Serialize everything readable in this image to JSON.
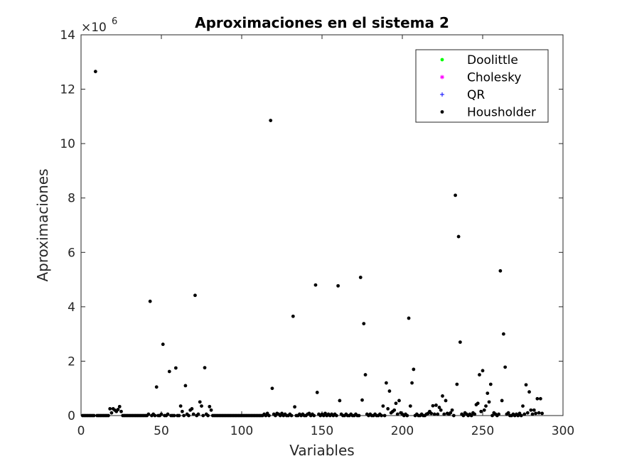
{
  "chart_data": {
    "type": "scatter",
    "title": "Aproximaciones en el sistema 2",
    "xlabel": "Variables",
    "ylabel": "Aproximaciones",
    "y_exponent_label": "×10",
    "y_exponent_power": "6",
    "xlim": [
      0,
      300
    ],
    "ylim": [
      0,
      14000000
    ],
    "xticks": [
      0,
      50,
      100,
      150,
      200,
      250,
      300
    ],
    "yticks": [
      0,
      2000000,
      4000000,
      6000000,
      8000000,
      10000000,
      12000000,
      14000000
    ],
    "ytick_labels": [
      "0",
      "2",
      "4",
      "6",
      "8",
      "10",
      "12",
      "14"
    ],
    "grid": false,
    "legend_position": "top-right",
    "legend": [
      {
        "name": "Doolittle",
        "color": "#00ff00",
        "marker": "dot"
      },
      {
        "name": "Cholesky",
        "color": "#ff00ff",
        "marker": "star"
      },
      {
        "name": "QR",
        "color": "#0000ff",
        "marker": "plus"
      },
      {
        "name": "Housholder",
        "color": "#000000",
        "marker": "dot"
      }
    ],
    "series": [
      {
        "name": "Housholder",
        "color": "#000000",
        "points": [
          [
            1,
            0
          ],
          [
            2,
            0
          ],
          [
            3,
            0
          ],
          [
            4,
            0
          ],
          [
            5,
            0
          ],
          [
            6,
            0
          ],
          [
            7,
            0
          ],
          [
            8,
            0
          ],
          [
            9,
            12650000
          ],
          [
            10,
            0
          ],
          [
            11,
            0
          ],
          [
            12,
            0
          ],
          [
            13,
            0
          ],
          [
            14,
            0
          ],
          [
            15,
            0
          ],
          [
            16,
            0
          ],
          [
            17,
            0
          ],
          [
            18,
            250000
          ],
          [
            19,
            100000
          ],
          [
            20,
            250000
          ],
          [
            21,
            200000
          ],
          [
            22,
            150000
          ],
          [
            23,
            220000
          ],
          [
            24,
            330000
          ],
          [
            25,
            150000
          ],
          [
            26,
            0
          ],
          [
            27,
            0
          ],
          [
            28,
            0
          ],
          [
            29,
            0
          ],
          [
            30,
            0
          ],
          [
            31,
            0
          ],
          [
            32,
            0
          ],
          [
            33,
            0
          ],
          [
            34,
            0
          ],
          [
            35,
            0
          ],
          [
            36,
            0
          ],
          [
            37,
            0
          ],
          [
            38,
            0
          ],
          [
            39,
            0
          ],
          [
            40,
            0
          ],
          [
            41,
            0
          ],
          [
            42,
            50000
          ],
          [
            43,
            4200000
          ],
          [
            44,
            0
          ],
          [
            45,
            50000
          ],
          [
            46,
            0
          ],
          [
            47,
            1050000
          ],
          [
            48,
            0
          ],
          [
            49,
            0
          ],
          [
            50,
            50000
          ],
          [
            51,
            2620000
          ],
          [
            52,
            0
          ],
          [
            53,
            0
          ],
          [
            54,
            50000
          ],
          [
            55,
            1620000
          ],
          [
            56,
            0
          ],
          [
            57,
            0
          ],
          [
            58,
            0
          ],
          [
            59,
            1750000
          ],
          [
            60,
            0
          ],
          [
            61,
            0
          ],
          [
            62,
            350000
          ],
          [
            63,
            150000
          ],
          [
            64,
            0
          ],
          [
            65,
            1100000
          ],
          [
            66,
            50000
          ],
          [
            67,
            0
          ],
          [
            68,
            200000
          ],
          [
            69,
            250000
          ],
          [
            70,
            50000
          ],
          [
            71,
            4420000
          ],
          [
            72,
            0
          ],
          [
            73,
            50000
          ],
          [
            74,
            500000
          ],
          [
            75,
            350000
          ],
          [
            76,
            0
          ],
          [
            77,
            1760000
          ],
          [
            78,
            50000
          ],
          [
            79,
            0
          ],
          [
            80,
            330000
          ],
          [
            81,
            200000
          ],
          [
            82,
            0
          ],
          [
            83,
            0
          ],
          [
            84,
            0
          ],
          [
            85,
            0
          ],
          [
            86,
            0
          ],
          [
            87,
            0
          ],
          [
            88,
            0
          ],
          [
            89,
            0
          ],
          [
            90,
            0
          ],
          [
            91,
            0
          ],
          [
            92,
            0
          ],
          [
            93,
            0
          ],
          [
            94,
            0
          ],
          [
            95,
            0
          ],
          [
            96,
            0
          ],
          [
            97,
            0
          ],
          [
            98,
            0
          ],
          [
            99,
            0
          ],
          [
            100,
            0
          ],
          [
            101,
            0
          ],
          [
            102,
            0
          ],
          [
            103,
            0
          ],
          [
            104,
            0
          ],
          [
            105,
            0
          ],
          [
            106,
            0
          ],
          [
            107,
            0
          ],
          [
            108,
            0
          ],
          [
            109,
            0
          ],
          [
            110,
            0
          ],
          [
            111,
            0
          ],
          [
            112,
            0
          ],
          [
            113,
            0
          ],
          [
            114,
            50000
          ],
          [
            115,
            0
          ],
          [
            116,
            80000
          ],
          [
            117,
            0
          ],
          [
            118,
            10850000
          ],
          [
            119,
            1000000
          ],
          [
            120,
            50000
          ],
          [
            121,
            0
          ],
          [
            122,
            80000
          ],
          [
            123,
            50000
          ],
          [
            124,
            0
          ],
          [
            125,
            80000
          ],
          [
            126,
            0
          ],
          [
            127,
            50000
          ],
          [
            128,
            0
          ],
          [
            129,
            0
          ],
          [
            130,
            50000
          ],
          [
            131,
            0
          ],
          [
            132,
            3650000
          ],
          [
            133,
            320000
          ],
          [
            134,
            0
          ],
          [
            135,
            0
          ],
          [
            136,
            50000
          ],
          [
            137,
            0
          ],
          [
            138,
            50000
          ],
          [
            139,
            0
          ],
          [
            140,
            0
          ],
          [
            141,
            50000
          ],
          [
            142,
            80000
          ],
          [
            143,
            0
          ],
          [
            144,
            50000
          ],
          [
            145,
            0
          ],
          [
            146,
            4800000
          ],
          [
            147,
            850000
          ],
          [
            148,
            50000
          ],
          [
            149,
            0
          ],
          [
            150,
            50000
          ],
          [
            151,
            0
          ],
          [
            152,
            80000
          ],
          [
            153,
            0
          ],
          [
            154,
            50000
          ],
          [
            155,
            0
          ],
          [
            156,
            50000
          ],
          [
            157,
            0
          ],
          [
            158,
            50000
          ],
          [
            159,
            0
          ],
          [
            160,
            4770000
          ],
          [
            161,
            550000
          ],
          [
            162,
            50000
          ],
          [
            163,
            0
          ],
          [
            164,
            0
          ],
          [
            165,
            50000
          ],
          [
            166,
            0
          ],
          [
            167,
            0
          ],
          [
            168,
            50000
          ],
          [
            169,
            0
          ],
          [
            170,
            0
          ],
          [
            171,
            50000
          ],
          [
            172,
            0
          ],
          [
            173,
            0
          ],
          [
            174,
            5080000
          ],
          [
            175,
            570000
          ],
          [
            176,
            3380000
          ],
          [
            177,
            1500000
          ],
          [
            178,
            50000
          ],
          [
            179,
            0
          ],
          [
            180,
            50000
          ],
          [
            181,
            0
          ],
          [
            182,
            0
          ],
          [
            183,
            50000
          ],
          [
            184,
            0
          ],
          [
            185,
            0
          ],
          [
            186,
            50000
          ],
          [
            187,
            0
          ],
          [
            188,
            350000
          ],
          [
            189,
            0
          ],
          [
            190,
            1200000
          ],
          [
            191,
            250000
          ],
          [
            192,
            900000
          ],
          [
            193,
            100000
          ],
          [
            194,
            150000
          ],
          [
            195,
            200000
          ],
          [
            196,
            450000
          ],
          [
            197,
            50000
          ],
          [
            198,
            550000
          ],
          [
            199,
            100000
          ],
          [
            200,
            50000
          ],
          [
            201,
            0
          ],
          [
            202,
            50000
          ],
          [
            203,
            0
          ],
          [
            204,
            3580000
          ],
          [
            205,
            350000
          ],
          [
            206,
            1200000
          ],
          [
            207,
            1700000
          ],
          [
            208,
            0
          ],
          [
            209,
            50000
          ],
          [
            210,
            0
          ],
          [
            211,
            0
          ],
          [
            212,
            50000
          ],
          [
            213,
            0
          ],
          [
            214,
            0
          ],
          [
            215,
            50000
          ],
          [
            216,
            80000
          ],
          [
            217,
            150000
          ],
          [
            218,
            80000
          ],
          [
            219,
            360000
          ],
          [
            220,
            50000
          ],
          [
            221,
            380000
          ],
          [
            222,
            50000
          ],
          [
            223,
            300000
          ],
          [
            224,
            200000
          ],
          [
            225,
            720000
          ],
          [
            226,
            50000
          ],
          [
            227,
            550000
          ],
          [
            228,
            80000
          ],
          [
            229,
            50000
          ],
          [
            230,
            100000
          ],
          [
            231,
            200000
          ],
          [
            232,
            0
          ],
          [
            233,
            8100000
          ],
          [
            234,
            1150000
          ],
          [
            235,
            6580000
          ],
          [
            236,
            2700000
          ],
          [
            237,
            50000
          ],
          [
            238,
            0
          ],
          [
            239,
            100000
          ],
          [
            240,
            50000
          ],
          [
            241,
            0
          ],
          [
            242,
            50000
          ],
          [
            243,
            0
          ],
          [
            244,
            100000
          ],
          [
            245,
            50000
          ],
          [
            246,
            400000
          ],
          [
            247,
            450000
          ],
          [
            248,
            1500000
          ],
          [
            249,
            150000
          ],
          [
            250,
            1650000
          ],
          [
            251,
            200000
          ],
          [
            252,
            350000
          ],
          [
            253,
            820000
          ],
          [
            254,
            500000
          ],
          [
            255,
            1150000
          ],
          [
            256,
            0
          ],
          [
            257,
            100000
          ],
          [
            258,
            50000
          ],
          [
            259,
            0
          ],
          [
            260,
            50000
          ],
          [
            261,
            5320000
          ],
          [
            262,
            550000
          ],
          [
            263,
            3000000
          ],
          [
            264,
            1780000
          ],
          [
            265,
            50000
          ],
          [
            266,
            100000
          ],
          [
            267,
            0
          ],
          [
            268,
            0
          ],
          [
            269,
            50000
          ],
          [
            270,
            0
          ],
          [
            271,
            50000
          ],
          [
            272,
            0
          ],
          [
            273,
            80000
          ],
          [
            274,
            0
          ],
          [
            275,
            350000
          ],
          [
            276,
            50000
          ],
          [
            277,
            1130000
          ],
          [
            278,
            100000
          ],
          [
            279,
            870000
          ],
          [
            280,
            200000
          ],
          [
            281,
            50000
          ],
          [
            282,
            200000
          ],
          [
            283,
            80000
          ],
          [
            284,
            620000
          ],
          [
            285,
            100000
          ],
          [
            286,
            620000
          ],
          [
            287,
            80000
          ]
        ]
      }
    ]
  }
}
